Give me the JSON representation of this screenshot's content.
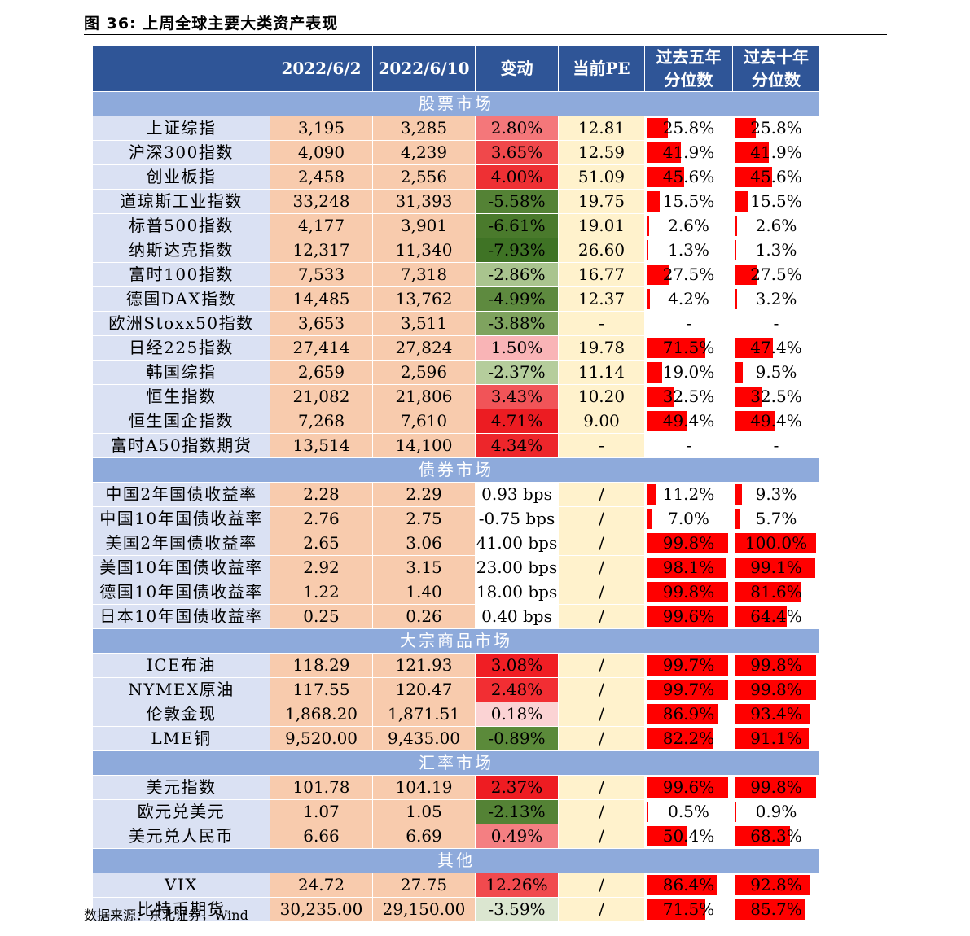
{
  "title": "图 36: 上周全球主要大类资产表现",
  "source": "数据来源：东北证券，Wind",
  "headers": [
    "",
    "2022/6/2",
    "2022/6/10",
    "变动",
    "当前PE",
    "过去五年\n分位数",
    "过去十年\n分位数"
  ],
  "colors": {
    "header_bg": "#2f5597",
    "section_bg": "#8eaadb",
    "name_bg": "#dae1f3",
    "value_bg": "#f8cbad",
    "pe_bg": "#fff2cc",
    "bar": "#ff0000"
  },
  "sections": [
    {
      "name": "股票市场",
      "rows": [
        {
          "name": "上证综指",
          "v1": "3,195",
          "v2": "3,285",
          "chg": "2.80%",
          "chg_color": "#f4777a",
          "pe": "12.81",
          "p5": "25.8%",
          "p5v": 0.258,
          "p10": "25.8%",
          "p10v": 0.258
        },
        {
          "name": "沪深300指数",
          "v1": "4,090",
          "v2": "4,239",
          "chg": "3.65%",
          "chg_color": "#f0484b",
          "pe": "12.59",
          "p5": "41.9%",
          "p5v": 0.419,
          "p10": "41.9%",
          "p10v": 0.419
        },
        {
          "name": "创业板指",
          "v1": "2,458",
          "v2": "2,556",
          "chg": "4.00%",
          "chg_color": "#ee3034",
          "pe": "51.09",
          "p5": "45.6%",
          "p5v": 0.456,
          "p10": "45.6%",
          "p10v": 0.456
        },
        {
          "name": "道琼斯工业指数",
          "v1": "33,248",
          "v2": "31,393",
          "chg": "-5.58%",
          "chg_color": "#548235",
          "pe": "19.75",
          "p5": "15.5%",
          "p5v": 0.155,
          "p10": "15.5%",
          "p10v": 0.155
        },
        {
          "name": "标普500指数",
          "v1": "4,177",
          "v2": "3,901",
          "chg": "-6.61%",
          "chg_color": "#4a7a2c",
          "pe": "19.01",
          "p5": "2.6%",
          "p5v": 0.026,
          "p10": "2.6%",
          "p10v": 0.026
        },
        {
          "name": "纳斯达克指数",
          "v1": "12,317",
          "v2": "11,340",
          "chg": "-7.93%",
          "chg_color": "#3f7325",
          "pe": "26.60",
          "p5": "1.3%",
          "p5v": 0.013,
          "p10": "1.3%",
          "p10v": 0.013
        },
        {
          "name": "富时100指数",
          "v1": "7,533",
          "v2": "7,318",
          "chg": "-2.86%",
          "chg_color": "#a9c48e",
          "pe": "16.77",
          "p5": "27.5%",
          "p5v": 0.275,
          "p10": "27.5%",
          "p10v": 0.275
        },
        {
          "name": "德国DAX指数",
          "v1": "14,485",
          "v2": "13,762",
          "chg": "-4.99%",
          "chg_color": "#5e8a3f",
          "pe": "12.37",
          "p5": "4.2%",
          "p5v": 0.042,
          "p10": "3.2%",
          "p10v": 0.032
        },
        {
          "name": "欧洲Stoxx50指数",
          "v1": "3,653",
          "v2": "3,511",
          "chg": "-3.88%",
          "chg_color": "#7fa35f",
          "pe": "-",
          "p5": "-",
          "p5v": 0,
          "p10": "-",
          "p10v": 0
        },
        {
          "name": "日经225指数",
          "v1": "27,414",
          "v2": "27,824",
          "chg": "1.50%",
          "chg_color": "#f9b4b6",
          "pe": "19.78",
          "p5": "71.5%",
          "p5v": 0.715,
          "p10": "47.4%",
          "p10v": 0.474
        },
        {
          "name": "韩国综指",
          "v1": "2,659",
          "v2": "2,596",
          "chg": "-2.37%",
          "chg_color": "#b5cd9c",
          "pe": "11.14",
          "p5": "19.0%",
          "p5v": 0.19,
          "p10": "9.5%",
          "p10v": 0.095
        },
        {
          "name": "恒生指数",
          "v1": "21,082",
          "v2": "21,806",
          "chg": "3.43%",
          "chg_color": "#f15458",
          "pe": "10.20",
          "p5": "32.5%",
          "p5v": 0.325,
          "p10": "32.5%",
          "p10v": 0.325
        },
        {
          "name": "恒生国企指数",
          "v1": "7,268",
          "v2": "7,610",
          "chg": "4.71%",
          "chg_color": "#ec1c22",
          "pe": "9.00",
          "p5": "49.4%",
          "p5v": 0.494,
          "p10": "49.4%",
          "p10v": 0.494
        },
        {
          "name": "富时A50指数期货",
          "v1": "13,514",
          "v2": "14,100",
          "chg": "4.34%",
          "chg_color": "#ed262b",
          "pe": "-",
          "p5": "-",
          "p5v": 0,
          "p10": "-",
          "p10v": 0
        }
      ]
    },
    {
      "name": "债券市场",
      "rows": [
        {
          "name": "中国2年国债收益率",
          "v1": "2.28",
          "v2": "2.29",
          "chg": "0.93 bps",
          "chg_color": "#ffffff",
          "pe": "/",
          "p5": "11.2%",
          "p5v": 0.112,
          "p10": "9.3%",
          "p10v": 0.093
        },
        {
          "name": "中国10年国债收益率",
          "v1": "2.76",
          "v2": "2.75",
          "chg": "-0.75 bps",
          "chg_color": "#ffffff",
          "pe": "/",
          "p5": "7.0%",
          "p5v": 0.07,
          "p10": "5.7%",
          "p10v": 0.057
        },
        {
          "name": "美国2年国债收益率",
          "v1": "2.65",
          "v2": "3.06",
          "chg": "41.00 bps",
          "chg_color": "#ffffff",
          "pe": "/",
          "p5": "99.8%",
          "p5v": 0.998,
          "p10": "100.0%",
          "p10v": 1.0
        },
        {
          "name": "美国10年国债收益率",
          "v1": "2.92",
          "v2": "3.15",
          "chg": "23.00 bps",
          "chg_color": "#ffffff",
          "pe": "/",
          "p5": "98.1%",
          "p5v": 0.981,
          "p10": "99.1%",
          "p10v": 0.991
        },
        {
          "name": "德国10年国债收益率",
          "v1": "1.22",
          "v2": "1.40",
          "chg": "18.00 bps",
          "chg_color": "#ffffff",
          "pe": "/",
          "p5": "99.8%",
          "p5v": 0.998,
          "p10": "81.6%",
          "p10v": 0.816
        },
        {
          "name": "日本10年国债收益率",
          "v1": "0.25",
          "v2": "0.26",
          "chg": "0.40 bps",
          "chg_color": "#ffffff",
          "pe": "/",
          "p5": "99.6%",
          "p5v": 0.996,
          "p10": "64.4%",
          "p10v": 0.644
        }
      ]
    },
    {
      "name": "大宗商品市场",
      "rows": [
        {
          "name": "ICE布油",
          "v1": "118.29",
          "v2": "121.93",
          "chg": "3.08%",
          "chg_color": "#f01e24",
          "pe": "/",
          "p5": "99.7%",
          "p5v": 0.997,
          "p10": "99.8%",
          "p10v": 0.998
        },
        {
          "name": "NYMEX原油",
          "v1": "117.55",
          "v2": "120.47",
          "chg": "2.48%",
          "chg_color": "#f22e33",
          "pe": "/",
          "p5": "99.7%",
          "p5v": 0.997,
          "p10": "99.8%",
          "p10v": 0.998
        },
        {
          "name": "伦敦金现",
          "v1": "1,868.20",
          "v2": "1,871.51",
          "chg": "0.18%",
          "chg_color": "#fbd3d4",
          "pe": "/",
          "p5": "86.9%",
          "p5v": 0.869,
          "p10": "93.4%",
          "p10v": 0.934
        },
        {
          "name": "LME铜",
          "v1": "9,520.00",
          "v2": "9,435.00",
          "chg": "-0.89%",
          "chg_color": "#5b8a3a",
          "pe": "/",
          "p5": "82.2%",
          "p5v": 0.822,
          "p10": "91.1%",
          "p10v": 0.911
        }
      ]
    },
    {
      "name": "汇率市场",
      "rows": [
        {
          "name": "美元指数",
          "v1": "101.78",
          "v2": "104.19",
          "chg": "2.37%",
          "chg_color": "#ee1c22",
          "pe": "/",
          "p5": "99.6%",
          "p5v": 0.996,
          "p10": "99.8%",
          "p10v": 0.998
        },
        {
          "name": "欧元兑美元",
          "v1": "1.07",
          "v2": "1.05",
          "chg": "-2.13%",
          "chg_color": "#548235",
          "pe": "/",
          "p5": "0.5%",
          "p5v": 0.005,
          "p10": "0.9%",
          "p10v": 0.009
        },
        {
          "name": "美元兑人民币",
          "v1": "6.66",
          "v2": "6.69",
          "chg": "0.49%",
          "chg_color": "#f47f82",
          "pe": "/",
          "p5": "50.4%",
          "p5v": 0.504,
          "p10": "68.3%",
          "p10v": 0.683
        }
      ]
    },
    {
      "name": "其他",
      "rows": [
        {
          "name": "VIX",
          "v1": "24.72",
          "v2": "27.75",
          "chg": "12.26%",
          "chg_color": "#f14a4e",
          "pe": "/",
          "p5": "86.4%",
          "p5v": 0.864,
          "p10": "92.8%",
          "p10v": 0.928
        },
        {
          "name": "比特币期货",
          "v1": "30,235.00",
          "v2": "29,150.00",
          "chg": "-3.59%",
          "chg_color": "#dbe6d0",
          "pe": "/",
          "p5": "71.5%",
          "p5v": 0.715,
          "p10": "85.7%",
          "p10v": 0.857
        }
      ]
    }
  ]
}
